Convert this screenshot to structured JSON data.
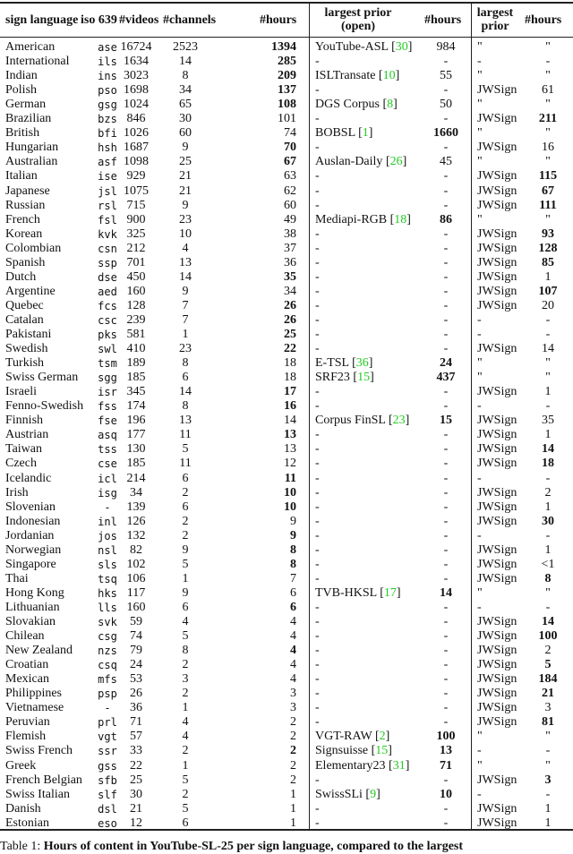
{
  "table": {
    "headers": {
      "lang": "sign language",
      "iso": "iso 639",
      "videos": "#videos",
      "channels": "#channels",
      "hours": "#hours",
      "prior_open_1": "largest prior",
      "prior_open_2": "(open)",
      "prior_hours": "#hours",
      "prior_1": "largest",
      "prior_2": "prior",
      "prior2_hours": "#hours"
    },
    "columns": [
      "lang",
      "iso",
      "videos",
      "channels",
      "hours",
      "hours_bold",
      "prior_open",
      "ref",
      "prior_open_hours",
      "prior_open_bold",
      "prior",
      "prior_hours",
      "prior_bold"
    ],
    "rows": [
      [
        "American",
        "ase",
        "16724",
        "2523",
        "1394",
        true,
        "YouTube-ASL",
        "30",
        "984",
        false,
        "\"",
        "\"",
        false
      ],
      [
        "International",
        "ils",
        "1634",
        "14",
        "285",
        true,
        "-",
        "",
        "-",
        false,
        "-",
        "-",
        false
      ],
      [
        "Indian",
        "ins",
        "3023",
        "8",
        "209",
        true,
        "ISLTransate",
        "10",
        "55",
        false,
        "\"",
        "\"",
        false
      ],
      [
        "Polish",
        "pso",
        "1698",
        "34",
        "137",
        true,
        "-",
        "",
        "-",
        false,
        "JWSign",
        "61",
        false
      ],
      [
        "German",
        "gsg",
        "1024",
        "65",
        "108",
        true,
        "DGS Corpus",
        "8",
        "50",
        false,
        "\"",
        "\"",
        false
      ],
      [
        "Brazilian",
        "bzs",
        "846",
        "30",
        "101",
        false,
        "-",
        "",
        "-",
        false,
        "JWSign",
        "211",
        true
      ],
      [
        "British",
        "bfi",
        "1026",
        "60",
        "74",
        false,
        "BOBSL",
        "1",
        "1660",
        true,
        "\"",
        "\"",
        false
      ],
      [
        "Hungarian",
        "hsh",
        "1687",
        "9",
        "70",
        true,
        "-",
        "",
        "-",
        false,
        "JWSign",
        "16",
        false
      ],
      [
        "Australian",
        "asf",
        "1098",
        "25",
        "67",
        true,
        "Auslan-Daily",
        "26",
        "45",
        false,
        "\"",
        "\"",
        false
      ],
      [
        "Italian",
        "ise",
        "929",
        "21",
        "63",
        false,
        "-",
        "",
        "-",
        false,
        "JWSign",
        "115",
        true
      ],
      [
        "Japanese",
        "jsl",
        "1075",
        "21",
        "62",
        false,
        "-",
        "",
        "-",
        false,
        "JWSign",
        "67",
        true
      ],
      [
        "Russian",
        "rsl",
        "715",
        "9",
        "60",
        false,
        "-",
        "",
        "-",
        false,
        "JWSign",
        "111",
        true
      ],
      [
        "French",
        "fsl",
        "900",
        "23",
        "49",
        false,
        "Mediapi-RGB",
        "18",
        "86",
        true,
        "\"",
        "\"",
        false
      ],
      [
        "Korean",
        "kvk",
        "325",
        "10",
        "38",
        false,
        "-",
        "",
        "-",
        false,
        "JWSign",
        "93",
        true
      ],
      [
        "Colombian",
        "csn",
        "212",
        "4",
        "37",
        false,
        "-",
        "",
        "-",
        false,
        "JWSign",
        "128",
        true
      ],
      [
        "Spanish",
        "ssp",
        "701",
        "13",
        "36",
        false,
        "-",
        "",
        "-",
        false,
        "JWSign",
        "85",
        true
      ],
      [
        "Dutch",
        "dse",
        "450",
        "14",
        "35",
        true,
        "-",
        "",
        "-",
        false,
        "JWSign",
        "1",
        false
      ],
      [
        "Argentine",
        "aed",
        "160",
        "9",
        "34",
        false,
        "-",
        "",
        "-",
        false,
        "JWSign",
        "107",
        true
      ],
      [
        "Quebec",
        "fcs",
        "128",
        "7",
        "26",
        true,
        "-",
        "",
        "-",
        false,
        "JWSign",
        "20",
        false
      ],
      [
        "Catalan",
        "csc",
        "239",
        "7",
        "26",
        true,
        "-",
        "",
        "-",
        false,
        "-",
        "-",
        false
      ],
      [
        "Pakistani",
        "pks",
        "581",
        "1",
        "25",
        true,
        "-",
        "",
        "-",
        false,
        "-",
        "-",
        false
      ],
      [
        "Swedish",
        "swl",
        "410",
        "23",
        "22",
        true,
        "-",
        "",
        "-",
        false,
        "JWSign",
        "14",
        false
      ],
      [
        "Turkish",
        "tsm",
        "189",
        "8",
        "18",
        false,
        "E-TSL",
        "36",
        "24",
        true,
        "\"",
        "\"",
        false
      ],
      [
        "Swiss German",
        "sgg",
        "185",
        "6",
        "18",
        false,
        "SRF23",
        "15",
        "437",
        true,
        "\"",
        "\"",
        false
      ],
      [
        "Israeli",
        "isr",
        "345",
        "14",
        "17",
        true,
        "-",
        "",
        "-",
        false,
        "JWSign",
        "1",
        false
      ],
      [
        "Fenno-Swedish",
        "fss",
        "174",
        "8",
        "16",
        true,
        "-",
        "",
        "-",
        false,
        "-",
        "-",
        false
      ],
      [
        "Finnish",
        "fse",
        "196",
        "13",
        "14",
        false,
        "Corpus FinSL",
        "23",
        "15",
        true,
        "JWSign",
        "35",
        false
      ],
      [
        "Austrian",
        "asq",
        "177",
        "11",
        "13",
        true,
        "-",
        "",
        "-",
        false,
        "JWSign",
        "1",
        false
      ],
      [
        "Taiwan",
        "tss",
        "130",
        "5",
        "13",
        false,
        "-",
        "",
        "-",
        false,
        "JWSign",
        "14",
        true
      ],
      [
        "Czech",
        "cse",
        "185",
        "11",
        "12",
        false,
        "-",
        "",
        "-",
        false,
        "JWSign",
        "18",
        true
      ],
      [
        "Icelandic",
        "icl",
        "214",
        "6",
        "11",
        true,
        "-",
        "",
        "-",
        false,
        "-",
        "-",
        false
      ],
      [
        "Irish",
        "isg",
        "34",
        "2",
        "10",
        true,
        "-",
        "",
        "-",
        false,
        "JWSign",
        "2",
        false
      ],
      [
        "Slovenian",
        "-",
        "139",
        "6",
        "10",
        true,
        "-",
        "",
        "-",
        false,
        "JWSign",
        "1",
        false
      ],
      [
        "Indonesian",
        "inl",
        "126",
        "2",
        "9",
        false,
        "-",
        "",
        "-",
        false,
        "JWSign",
        "30",
        true
      ],
      [
        "Jordanian",
        "jos",
        "132",
        "2",
        "9",
        true,
        "-",
        "",
        "-",
        false,
        "-",
        "-",
        false
      ],
      [
        "Norwegian",
        "nsl",
        "82",
        "9",
        "8",
        true,
        "-",
        "",
        "-",
        false,
        "JWSign",
        "1",
        false
      ],
      [
        "Singapore",
        "sls",
        "102",
        "5",
        "8",
        true,
        "-",
        "",
        "-",
        false,
        "JWSign",
        "<1",
        false
      ],
      [
        "Thai",
        "tsq",
        "106",
        "1",
        "7",
        false,
        "-",
        "",
        "-",
        false,
        "JWSign",
        "8",
        true
      ],
      [
        "Hong Kong",
        "hks",
        "117",
        "9",
        "6",
        false,
        "TVB-HKSL",
        "17",
        "14",
        true,
        "\"",
        "\"",
        false
      ],
      [
        "Lithuanian",
        "lls",
        "160",
        "6",
        "6",
        true,
        "-",
        "",
        "-",
        false,
        "-",
        "-",
        false
      ],
      [
        "Slovakian",
        "svk",
        "59",
        "4",
        "4",
        false,
        "-",
        "",
        "-",
        false,
        "JWSign",
        "14",
        true
      ],
      [
        "Chilean",
        "csg",
        "74",
        "5",
        "4",
        false,
        "-",
        "",
        "-",
        false,
        "JWSign",
        "100",
        true
      ],
      [
        "New Zealand",
        "nzs",
        "79",
        "8",
        "4",
        true,
        "-",
        "",
        "-",
        false,
        "JWSign",
        "2",
        false
      ],
      [
        "Croatian",
        "csq",
        "24",
        "2",
        "4",
        false,
        "-",
        "",
        "-",
        false,
        "JWSign",
        "5",
        true
      ],
      [
        "Mexican",
        "mfs",
        "53",
        "3",
        "4",
        false,
        "-",
        "",
        "-",
        false,
        "JWSign",
        "184",
        true
      ],
      [
        "Philippines",
        "psp",
        "26",
        "2",
        "3",
        false,
        "-",
        "",
        "-",
        false,
        "JWSign",
        "21",
        true
      ],
      [
        "Vietnamese",
        "-",
        "36",
        "1",
        "3",
        false,
        "-",
        "",
        "-",
        false,
        "JWSign",
        "3",
        false
      ],
      [
        "Peruvian",
        "prl",
        "71",
        "4",
        "2",
        false,
        "-",
        "",
        "-",
        false,
        "JWSign",
        "81",
        true
      ],
      [
        "Flemish",
        "vgt",
        "57",
        "4",
        "2",
        false,
        "VGT-RAW",
        "2",
        "100",
        true,
        "\"",
        "\"",
        false
      ],
      [
        "Swiss French",
        "ssr",
        "33",
        "2",
        "2",
        true,
        "Signsuisse",
        "15",
        "13",
        true,
        "-",
        "-",
        false
      ],
      [
        "Greek",
        "gss",
        "22",
        "1",
        "2",
        false,
        "Elementary23",
        "31",
        "71",
        true,
        "\"",
        "\"",
        false
      ],
      [
        "French Belgian",
        "sfb",
        "25",
        "5",
        "2",
        false,
        "-",
        "",
        "-",
        false,
        "JWSign",
        "3",
        true
      ],
      [
        "Swiss Italian",
        "slf",
        "30",
        "2",
        "1",
        false,
        "SwissSLi",
        "9",
        "10",
        true,
        "-",
        "-",
        false
      ],
      [
        "Danish",
        "dsl",
        "21",
        "5",
        "1",
        false,
        "-",
        "",
        "-",
        false,
        "JWSign",
        "1",
        false
      ],
      [
        "Estonian",
        "eso",
        "12",
        "6",
        "1",
        false,
        "-",
        "",
        "-",
        false,
        "JWSign",
        "1",
        false
      ]
    ]
  },
  "caption": {
    "label": "Table 1:",
    "text": "Hours of content in YouTube-SL-25 per sign language, compared to the largest"
  },
  "colors": {
    "citation": "#22cc22",
    "text": "#111111"
  }
}
